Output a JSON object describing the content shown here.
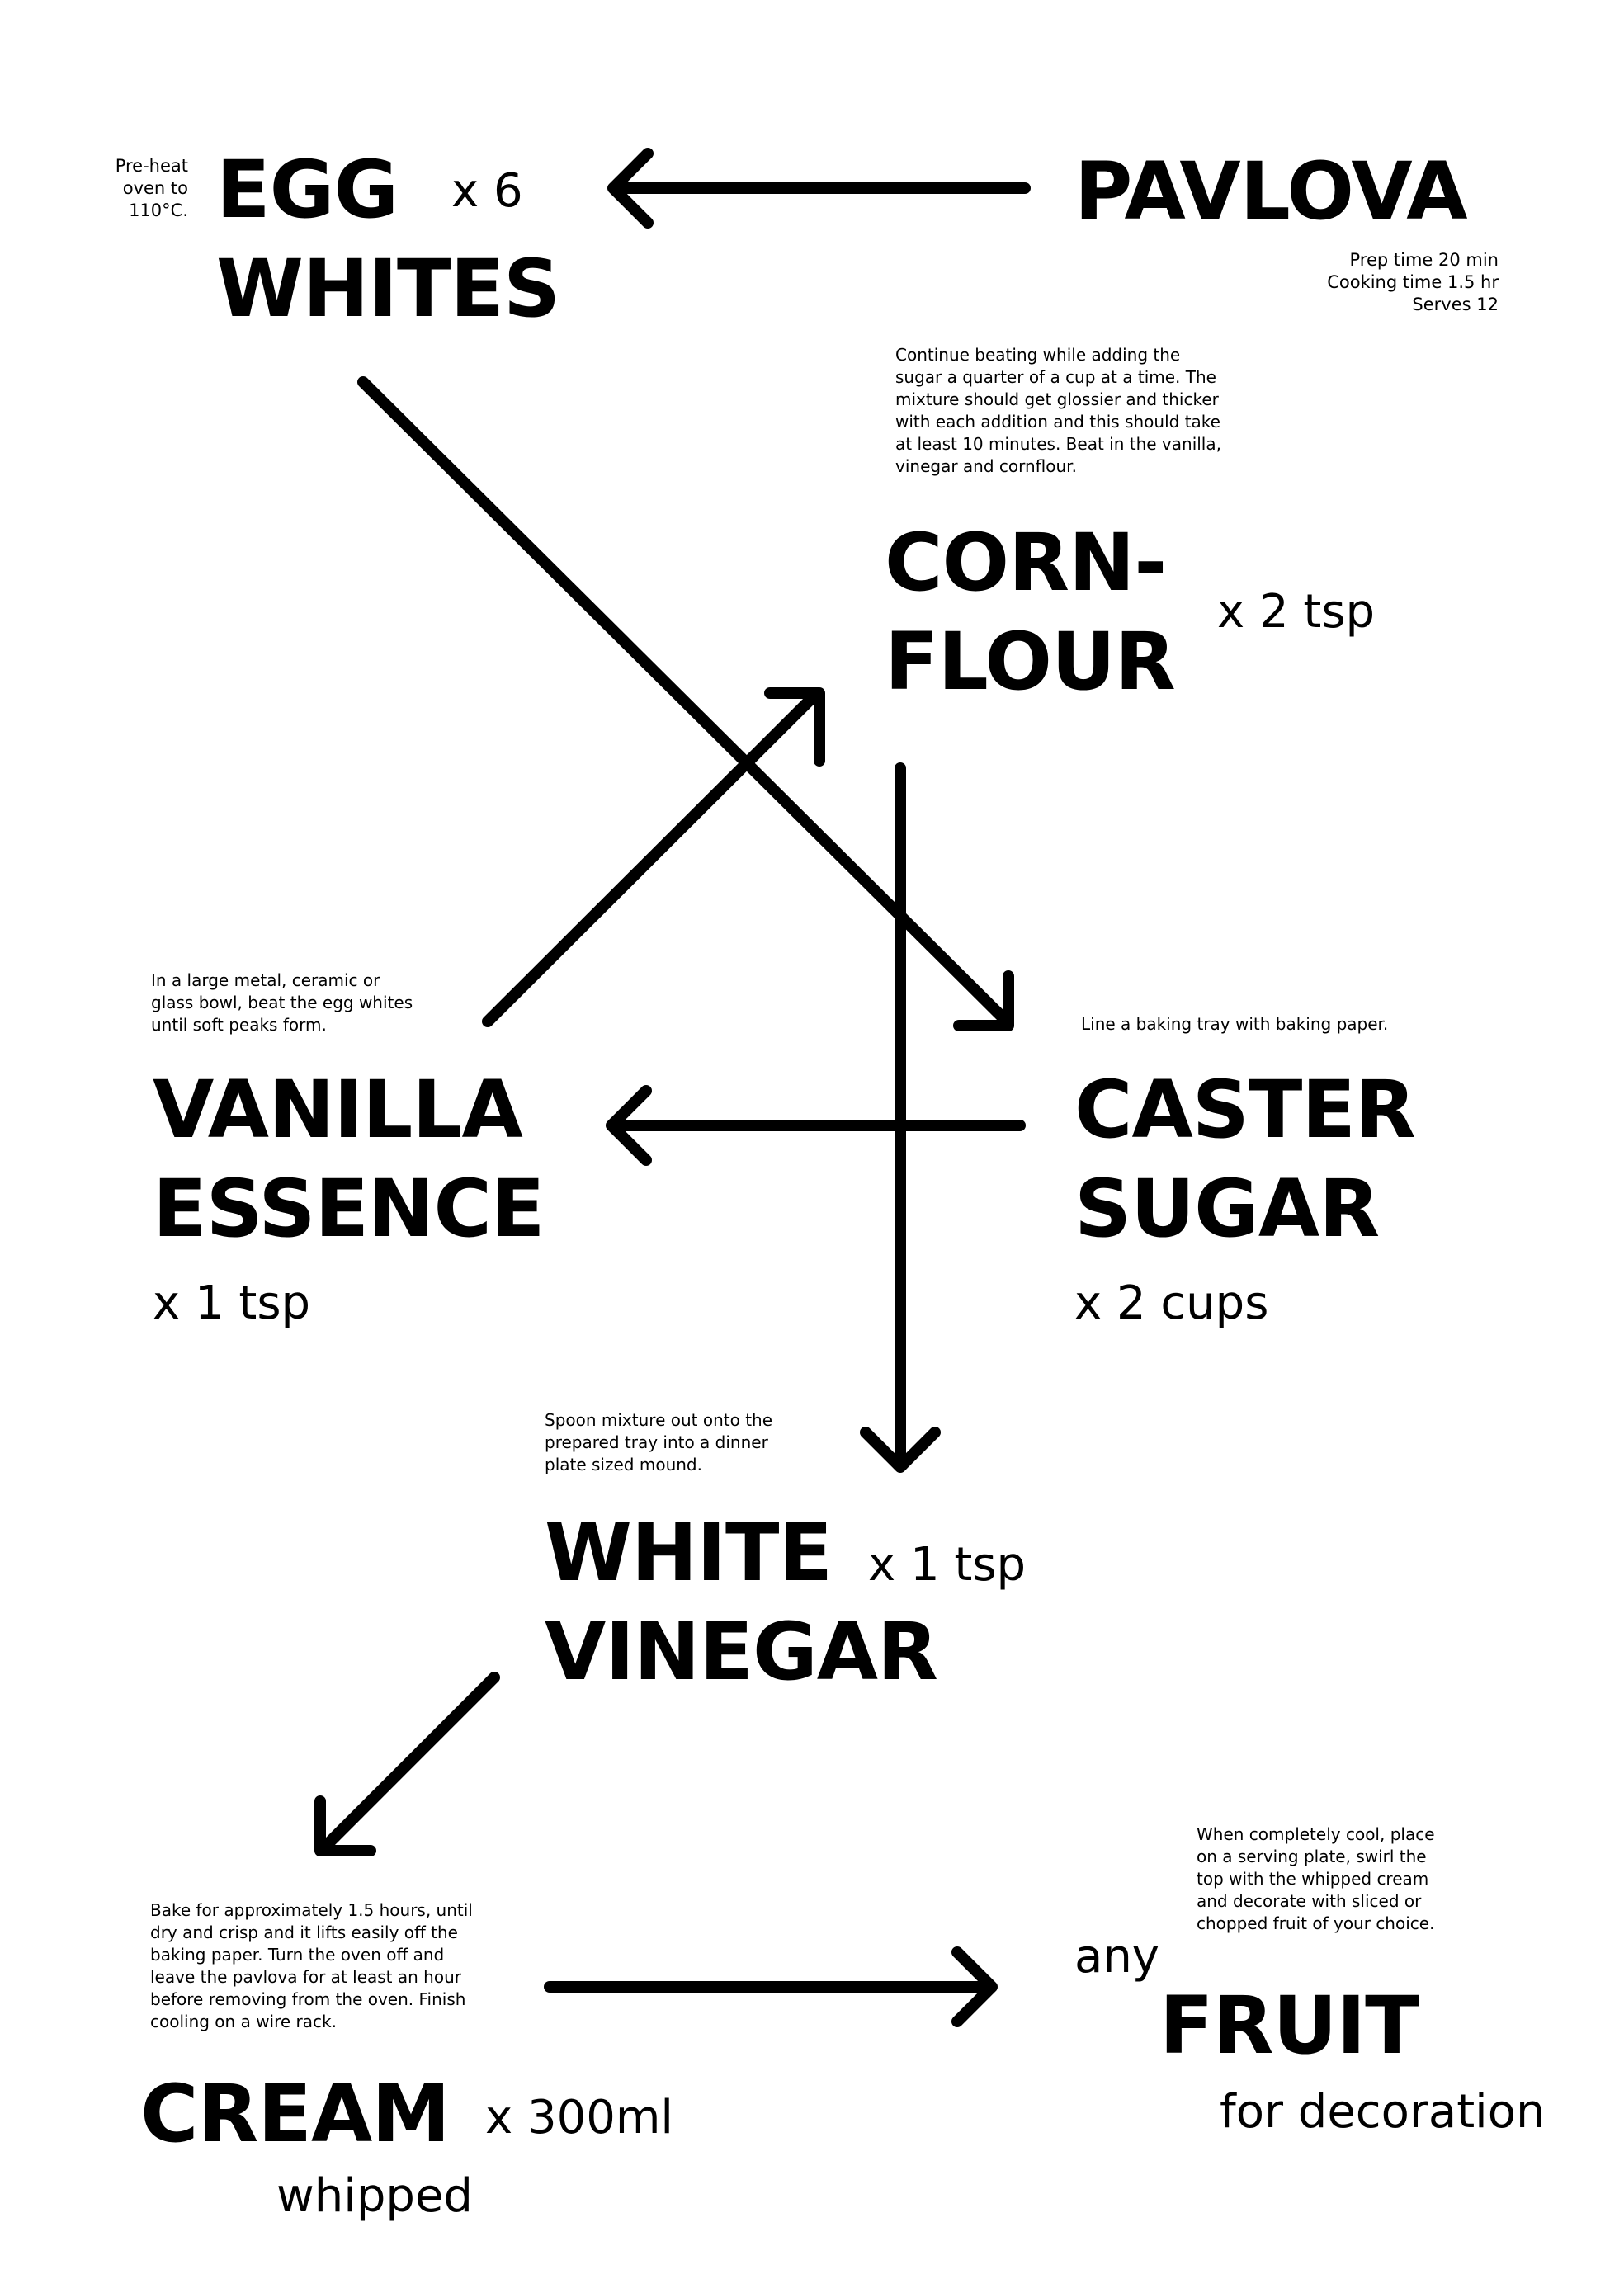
{
  "title": "PAVLOVA",
  "meta": {
    "prep": "Prep time 20 min",
    "cooking": "Cooking time 1.5 hr",
    "serves": "Serves 12"
  },
  "ingredients": {
    "egg_whites": {
      "line1": "EGG",
      "line2": "WHITES",
      "qty": "x 6"
    },
    "cornflour": {
      "line1": "CORN-",
      "line2": "FLOUR",
      "qty": "x 2 tsp"
    },
    "vanilla": {
      "line1": "VANILLA",
      "line2": "ESSENCE",
      "qty": "x 1 tsp"
    },
    "caster_sugar": {
      "line1": "CASTER",
      "line2": "SUGAR",
      "qty": "x 2 cups"
    },
    "white_vinegar": {
      "line1": "WHITE",
      "line2": "VINEGAR",
      "qty": "x 1 tsp"
    },
    "cream": {
      "name": "CREAM",
      "qty": "x 300ml",
      "note": "whipped"
    },
    "fruit": {
      "pre": "any",
      "name": "FRUIT",
      "note": "for decoration"
    }
  },
  "steps": {
    "preheat": [
      "Pre-heat",
      "oven to",
      "110°C."
    ],
    "beat_whites": "In a large metal, ceramic or glass bowl, beat the egg whites until soft peaks form.",
    "add_sugar": "Continue beating while adding the sugar a quarter of a cup at a time. The mixture should get glossier and thicker with each addition and this should take at least 10 minutes. Beat in the vanilla, vinegar and cornflour.",
    "line_tray": "Line a baking tray with baking paper.",
    "spoon_out": "Spoon mixture out onto the prepared tray into a dinner plate sized mound.",
    "bake": "Bake for approximately 1.5 hours, until dry and crisp and it lifts easily off the baking paper. Turn the oven off and leave the pavlova for at least an hour before removing from the oven. Finish cooling on a wire rack.",
    "decorate": "When completely cool, place on a serving plate, swirl the top with the whipped cream and decorate with sliced or chopped fruit of your choice."
  }
}
